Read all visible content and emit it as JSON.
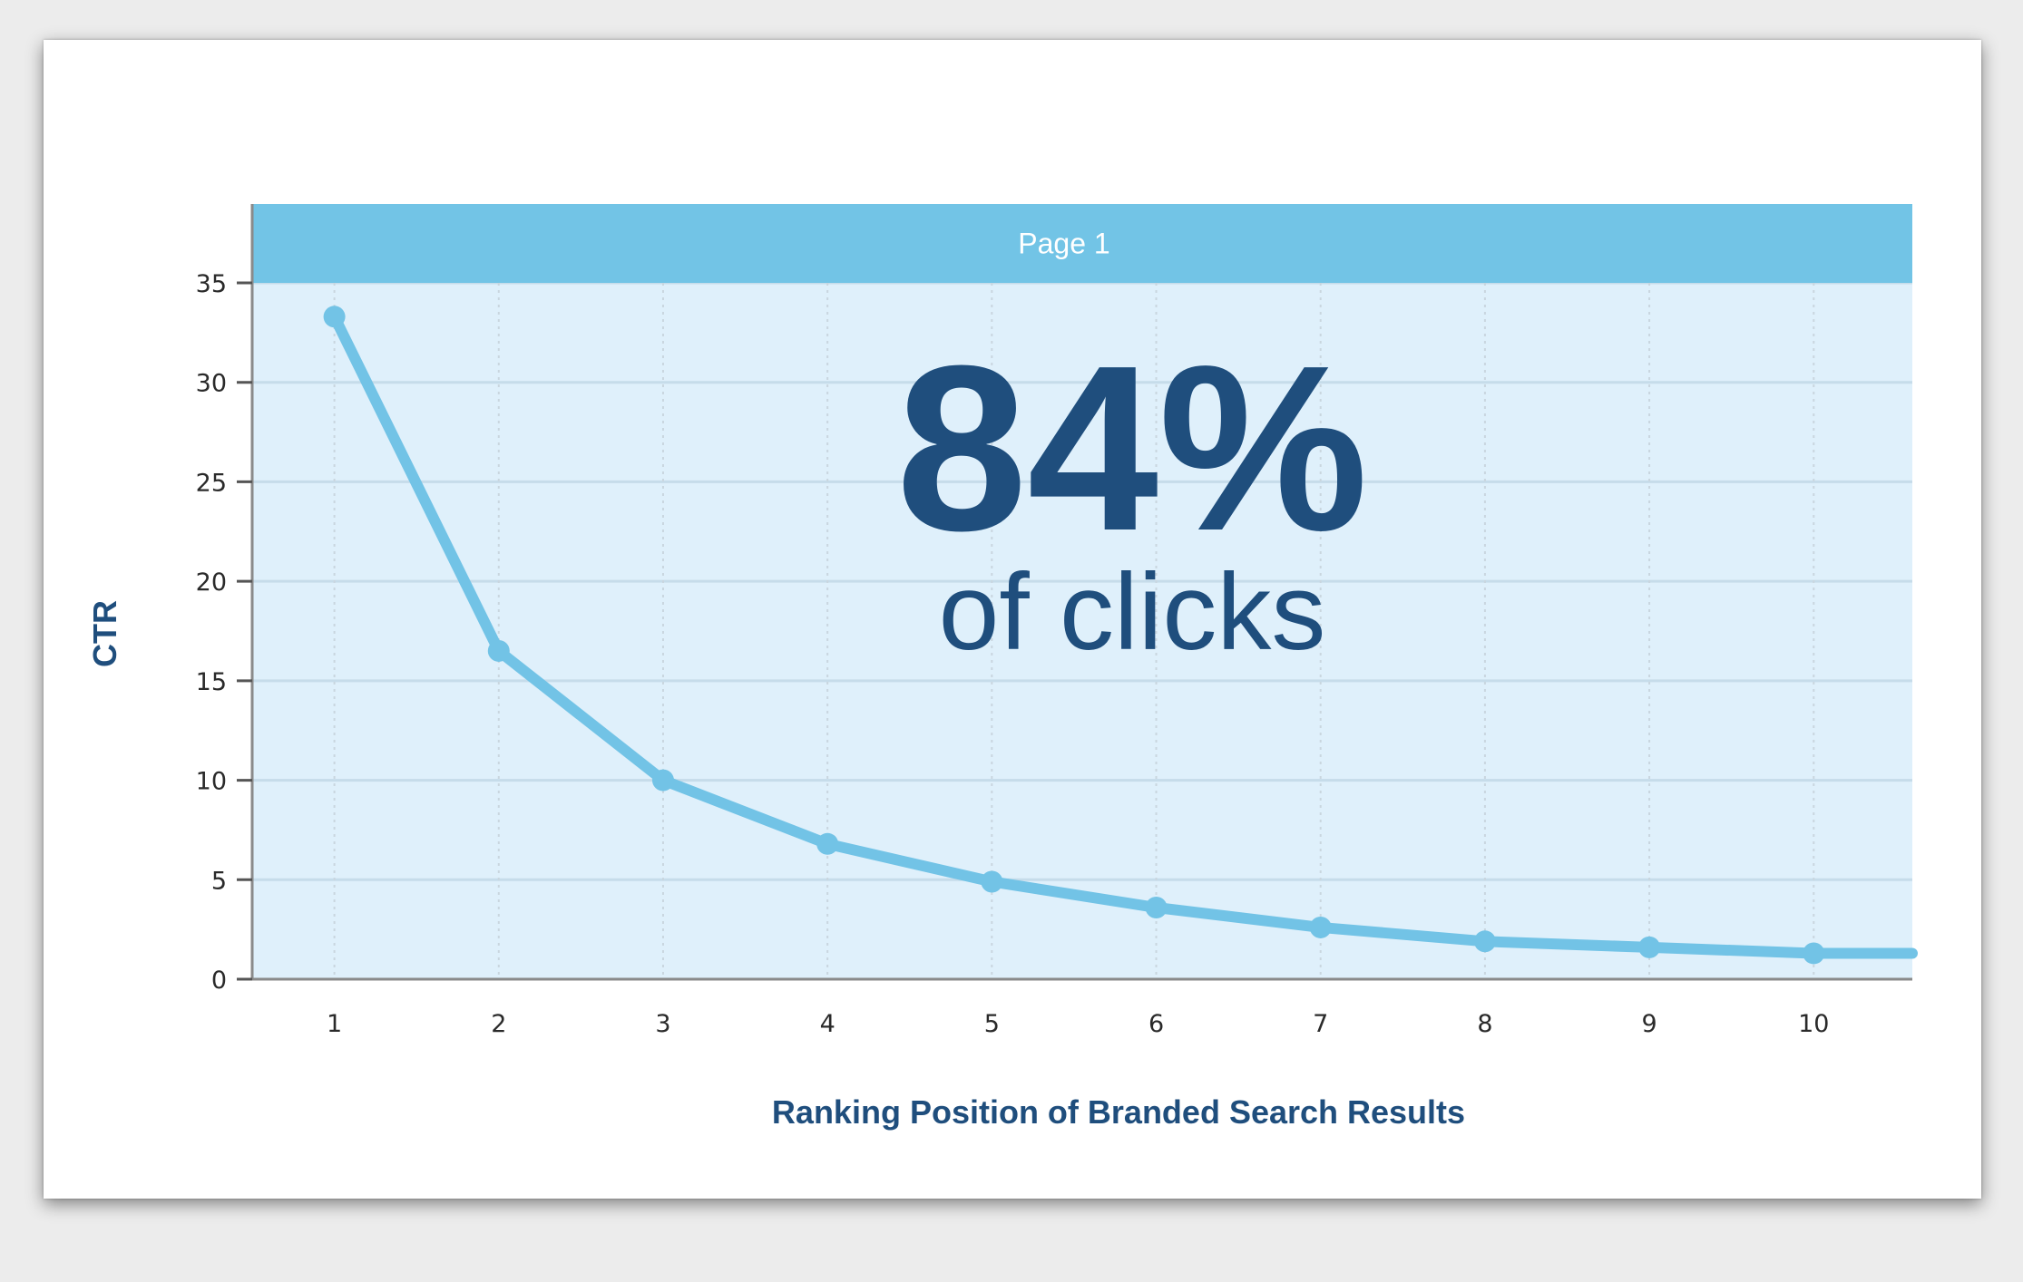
{
  "colors": {
    "line": "#72c3e6",
    "plot_bg": "#dff0fb",
    "band": "#72c4e6",
    "text_dark": "#1f4e7d",
    "grid": "#c6dcea"
  },
  "chart_data": {
    "type": "line",
    "x": [
      1,
      2,
      3,
      4,
      5,
      6,
      7,
      8,
      9,
      10
    ],
    "series": [
      {
        "values": [
          33.3,
          16.5,
          10.0,
          6.8,
          4.9,
          3.6,
          2.6,
          1.9,
          1.6,
          1.3
        ]
      }
    ],
    "line_end_value": 1.3,
    "xlim": [
      0.5,
      10.6
    ],
    "ylim": [
      0,
      35
    ],
    "y_ticks": [
      0,
      5,
      10,
      15,
      20,
      25,
      30,
      35
    ],
    "x_ticks": [
      1,
      2,
      3,
      4,
      5,
      6,
      7,
      8,
      9,
      10
    ],
    "xlabel": "Ranking Position of Branded Search Results",
    "ylabel": "CTR",
    "band_label": "Page 1",
    "grid": true,
    "legend": "none"
  },
  "annotation": {
    "big": "84%",
    "sub": "of clicks"
  }
}
